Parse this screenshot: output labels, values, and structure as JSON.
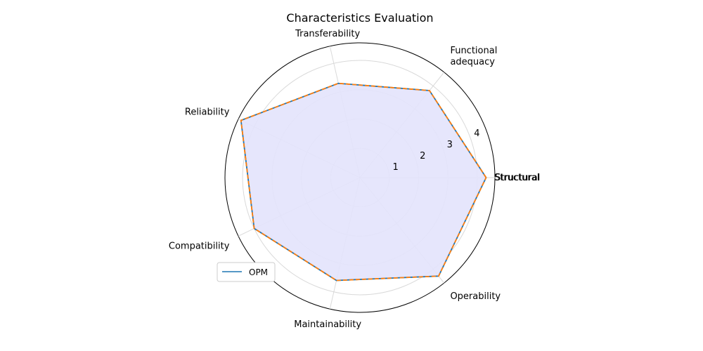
{
  "chart_data": {
    "type": "radar",
    "title": "Characteristics Evaluation",
    "categories": [
      "Structural",
      "Functional\nadequacy",
      "Transferability",
      "Reliability",
      "Compatibility",
      "Maintainability",
      "Operability"
    ],
    "duplicate_label": "Structural",
    "series": [
      {
        "name": "OPM",
        "values": [
          4.3,
          3.8,
          3.3,
          4.5,
          4.0,
          3.6,
          4.3
        ],
        "color": "#1f77b4"
      },
      {
        "values": [
          4.3,
          3.8,
          3.3,
          4.5,
          4.0,
          3.6,
          4.3
        ],
        "color": "#ff7f0e",
        "style": "dashed"
      }
    ],
    "fill_color": "#e3e3fc",
    "rlim": [
      0,
      4.6
    ],
    "rticks": [
      1,
      2,
      3,
      4
    ],
    "grid": true,
    "legend": {
      "position": "lower-left",
      "entries": [
        "OPM"
      ]
    }
  }
}
